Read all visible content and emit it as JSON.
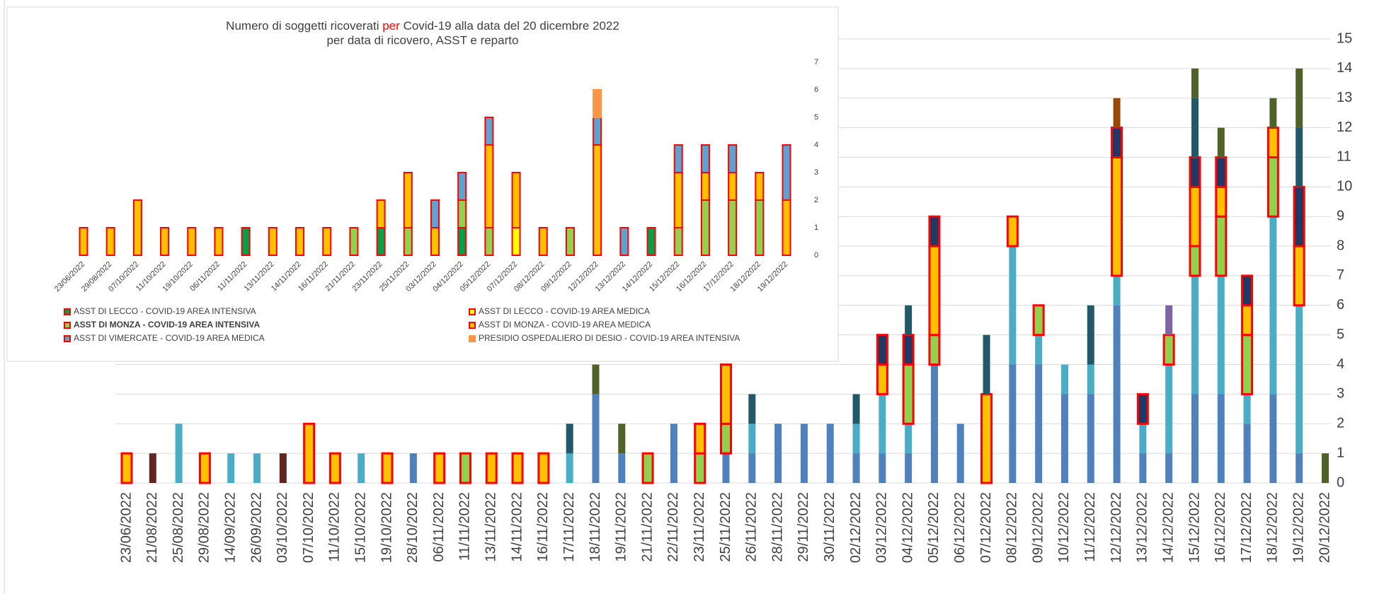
{
  "chart_data": [
    {
      "type": "bar",
      "stacked": true,
      "categories": [
        "23/06/2022",
        "21/08/2022",
        "25/08/2022",
        "29/08/2022",
        "14/09/2022",
        "26/09/2022",
        "03/10/2022",
        "07/10/2022",
        "11/10/2022",
        "15/10/2022",
        "19/10/2022",
        "28/10/2022",
        "06/11/2022",
        "11/11/2022",
        "13/11/2022",
        "14/11/2022",
        "16/11/2022",
        "17/11/2022",
        "18/11/2022",
        "19/11/2022",
        "21/11/2022",
        "22/11/2022",
        "23/11/2022",
        "25/11/2022",
        "26/11/2022",
        "28/11/2022",
        "29/11/2022",
        "30/11/2022",
        "02/12/2022",
        "03/12/2022",
        "04/12/2022",
        "05/12/2022",
        "06/12/2022",
        "07/12/2022",
        "08/12/2022",
        "09/12/2022",
        "10/12/2022",
        "11/12/2022",
        "12/12/2022",
        "13/12/2022",
        "14/12/2022",
        "15/12/2022",
        "16/12/2022",
        "17/12/2022",
        "18/12/2022",
        "19/12/2022",
        "20/12/2022"
      ],
      "series": [
        {
          "color": "#4f81bd",
          "values": [
            0,
            0,
            0,
            0,
            0,
            0,
            0,
            0,
            0,
            0,
            0,
            1,
            0,
            0,
            0,
            0,
            0,
            0,
            3,
            1,
            0,
            2,
            0,
            1,
            1,
            2,
            2,
            2,
            1,
            1,
            1,
            4,
            2,
            0,
            4,
            4,
            3,
            3,
            6,
            1,
            1,
            3,
            3,
            2,
            3,
            1,
            0
          ]
        },
        {
          "color": "#4bacc6",
          "values": [
            0,
            0,
            2,
            0,
            1,
            1,
            0,
            0,
            0,
            1,
            0,
            0,
            0,
            0,
            0,
            0,
            0,
            1,
            0,
            0,
            0,
            0,
            0,
            0,
            1,
            0,
            0,
            0,
            1,
            2,
            1,
            0,
            0,
            0,
            4,
            1,
            1,
            1,
            1,
            1,
            3,
            4,
            4,
            1,
            6,
            5,
            0
          ]
        },
        {
          "color": "#92d050",
          "stroke": "#ff0000",
          "values": [
            0,
            0,
            0,
            0,
            0,
            0,
            0,
            0,
            0,
            0,
            0,
            0,
            0,
            1,
            0,
            0,
            0,
            0,
            0,
            0,
            1,
            0,
            1,
            1,
            0,
            0,
            0,
            0,
            0,
            0,
            2,
            1,
            0,
            0,
            0,
            1,
            0,
            0,
            0,
            0,
            1,
            1,
            2,
            2,
            2,
            0,
            0
          ]
        },
        {
          "color": "#ffc000",
          "stroke": "#ff0000",
          "values": [
            1,
            0,
            0,
            1,
            0,
            0,
            0,
            2,
            1,
            0,
            1,
            0,
            1,
            0,
            1,
            1,
            1,
            0,
            0,
            0,
            0,
            0,
            1,
            2,
            0,
            0,
            0,
            0,
            0,
            1,
            0,
            3,
            0,
            3,
            1,
            0,
            0,
            0,
            4,
            0,
            0,
            2,
            1,
            1,
            1,
            2,
            0
          ]
        },
        {
          "color": "#1f3864",
          "stroke": "#ff0000",
          "values": [
            0,
            0,
            0,
            0,
            0,
            0,
            0,
            0,
            0,
            0,
            0,
            0,
            0,
            0,
            0,
            0,
            0,
            0,
            0,
            0,
            0,
            0,
            0,
            0,
            0,
            0,
            0,
            0,
            0,
            1,
            1,
            1,
            0,
            0,
            0,
            0,
            0,
            0,
            1,
            1,
            0,
            1,
            1,
            1,
            0,
            2,
            0
          ]
        },
        {
          "color": "#8064a2",
          "values": [
            0,
            0,
            0,
            0,
            0,
            0,
            0,
            0,
            0,
            0,
            0,
            0,
            0,
            0,
            0,
            0,
            0,
            0,
            0,
            0,
            0,
            0,
            0,
            0,
            0,
            0,
            0,
            0,
            0,
            0,
            0,
            0,
            0,
            0,
            0,
            0,
            0,
            0,
            0,
            0,
            1,
            0,
            0,
            0,
            0,
            0,
            0
          ]
        },
        {
          "color": "#215968",
          "values": [
            0,
            0,
            0,
            0,
            0,
            0,
            0,
            0,
            0,
            0,
            0,
            0,
            0,
            0,
            0,
            0,
            0,
            1,
            0,
            0,
            0,
            0,
            0,
            0,
            1,
            0,
            0,
            0,
            1,
            0,
            1,
            0,
            0,
            2,
            0,
            0,
            0,
            2,
            0,
            0,
            0,
            2,
            0,
            0,
            0,
            2,
            0
          ]
        },
        {
          "color": "#4f6228",
          "values": [
            0,
            0,
            0,
            0,
            0,
            0,
            0,
            0,
            0,
            0,
            0,
            0,
            0,
            0,
            0,
            0,
            0,
            0,
            1,
            1,
            0,
            0,
            0,
            0,
            0,
            0,
            0,
            0,
            0,
            0,
            0,
            0,
            0,
            0,
            0,
            0,
            0,
            0,
            0,
            0,
            0,
            1,
            1,
            0,
            1,
            2,
            1
          ]
        },
        {
          "color": "#632523",
          "values": [
            0,
            1,
            0,
            0,
            0,
            0,
            1,
            0,
            0,
            0,
            0,
            0,
            0,
            0,
            0,
            0,
            0,
            0,
            0,
            0,
            0,
            0,
            0,
            0,
            0,
            0,
            0,
            0,
            0,
            0,
            0,
            0,
            0,
            0,
            0,
            0,
            0,
            0,
            0,
            0,
            0,
            0,
            0,
            0,
            0,
            0,
            0
          ]
        },
        {
          "color": "#984807",
          "values": [
            0,
            0,
            0,
            0,
            0,
            0,
            0,
            0,
            0,
            0,
            0,
            0,
            0,
            0,
            0,
            0,
            0,
            0,
            0,
            0,
            0,
            0,
            0,
            0,
            0,
            0,
            0,
            0,
            0,
            0,
            0,
            0,
            0,
            0,
            0,
            0,
            0,
            0,
            1,
            0,
            0,
            0,
            0,
            0,
            0,
            0,
            0
          ]
        }
      ],
      "ylim": [
        0,
        15
      ],
      "yticks": [
        0,
        1,
        2,
        3,
        4,
        5,
        6,
        7,
        8,
        9,
        10,
        11,
        12,
        13,
        14,
        15
      ],
      "grid": true,
      "y_axis_side": "right"
    },
    {
      "type": "bar",
      "stacked": true,
      "title_parts": [
        "Numero di soggetti ricoverati ",
        "per",
        " Covid-19 alla data del 20 dicembre 2022"
      ],
      "title_highlight_color": "#ff0000",
      "subtitle": "per data di ricovero, ASST e reparto",
      "categories": [
        "23/06/2022",
        "29/08/2022",
        "07/10/2022",
        "11/10/2022",
        "19/10/2022",
        "06/11/2022",
        "11/11/2022",
        "13/11/2022",
        "14/11/2022",
        "16/11/2022",
        "21/11/2022",
        "23/11/2022",
        "25/11/2022",
        "03/12/2022",
        "04/12/2022",
        "05/12/2022",
        "07/12/2022",
        "08/12/2022",
        "09/12/2022",
        "12/12/2022",
        "13/12/2022",
        "14/12/2022",
        "15/12/2022",
        "16/12/2022",
        "17/12/2022",
        "18/12/2022",
        "19/12/2022"
      ],
      "series": [
        {
          "name": "ASST DI LECCO - COVID-19 AREA INTENSIVA",
          "color": "#00a04a",
          "stroke": "#ff0000",
          "values": [
            0,
            0,
            0,
            0,
            0,
            0,
            1,
            0,
            0,
            0,
            0,
            1,
            0,
            0,
            1,
            0,
            0,
            0,
            0,
            0,
            0,
            1,
            0,
            0,
            0,
            0,
            0
          ]
        },
        {
          "name": "ASST DI LECCO - COVID-19 AREA MEDICA",
          "color": "#ffff00",
          "stroke": "#ff0000",
          "values": [
            0,
            0,
            0,
            0,
            0,
            0,
            0,
            0,
            0,
            0,
            0,
            0,
            0,
            0,
            0,
            0,
            1,
            0,
            0,
            0,
            0,
            0,
            0,
            0,
            0,
            0,
            0
          ]
        },
        {
          "name": "ASST DI MONZA - COVID-19 AREA INTENSIVA",
          "color": "#92d050",
          "stroke": "#ff0000",
          "bold": true,
          "values": [
            0,
            0,
            0,
            0,
            0,
            0,
            0,
            0,
            0,
            0,
            1,
            0,
            1,
            0,
            1,
            1,
            0,
            0,
            1,
            0,
            0,
            0,
            1,
            2,
            2,
            2,
            0
          ]
        },
        {
          "name": "ASST DI MONZA - COVID-19 AREA MEDICA",
          "color": "#ffc000",
          "stroke": "#ff0000",
          "values": [
            1,
            1,
            2,
            1,
            1,
            1,
            0,
            1,
            1,
            1,
            0,
            1,
            2,
            1,
            0,
            3,
            2,
            1,
            0,
            4,
            0,
            0,
            2,
            1,
            1,
            1,
            2
          ]
        },
        {
          "name": "ASST DI VIMERCATE - COVID-19 AREA MEDICA",
          "color": "#5ba3d0",
          "stroke": "#ff0000",
          "values": [
            0,
            0,
            0,
            0,
            0,
            0,
            0,
            0,
            0,
            0,
            0,
            0,
            0,
            1,
            1,
            1,
            0,
            0,
            0,
            1,
            1,
            0,
            1,
            1,
            1,
            0,
            2
          ]
        },
        {
          "name": "PRESIDIO OSPEDALIERO DI DESIO - COVID-19 AREA INTENSIVA",
          "color": "#f79646",
          "stroke": "#f79646",
          "values": [
            0,
            0,
            0,
            0,
            0,
            0,
            0,
            0,
            0,
            0,
            0,
            0,
            0,
            0,
            0,
            0,
            0,
            0,
            0,
            1,
            0,
            0,
            0,
            0,
            0,
            0,
            0
          ]
        }
      ],
      "ylim": [
        0,
        7
      ],
      "yticks": [
        0,
        1,
        2,
        3,
        4,
        5,
        6,
        7
      ],
      "grid": false,
      "y_axis_side": "right"
    }
  ]
}
